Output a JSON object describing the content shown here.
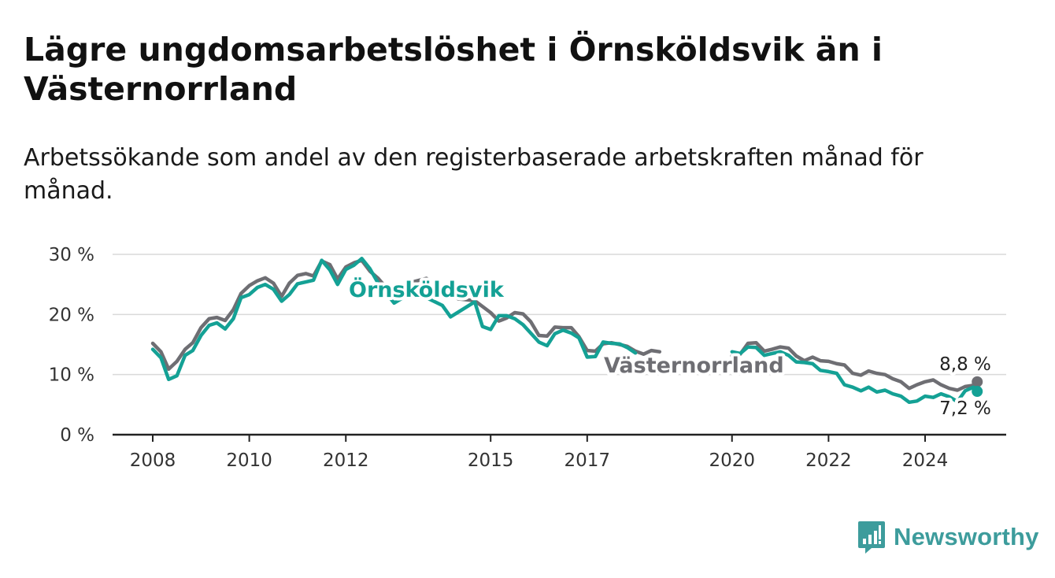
{
  "header": {
    "title": "Lägre ungdomsarbetslöshet i Örnsköldsvik än i Västernorrland",
    "subtitle": "Arbetssökande som andel av den registerbaserade arbetskraften månad för månad."
  },
  "brand": {
    "name": "Newsworthy",
    "icon": "newsworthy-logo-icon",
    "color": "#3d9c9c"
  },
  "chart_data": {
    "type": "line",
    "y_unit": "%",
    "ylim": [
      0,
      30
    ],
    "y_ticks": [
      0,
      10,
      20,
      30
    ],
    "y_tick_labels": [
      "0 %",
      "10 %",
      "20 %",
      "30 %"
    ],
    "xlim": [
      2007.6,
      2025.6
    ],
    "x_ticks": [
      2008,
      2010,
      2012,
      2015,
      2017,
      2020,
      2022,
      2024
    ],
    "x_tick_labels": [
      "2008",
      "2010",
      "2012",
      "2015",
      "2017",
      "2020",
      "2022",
      "2024"
    ],
    "grid": true,
    "legend": "inline labels on lines",
    "series": [
      {
        "name": "Västernorrland",
        "color": "#6e6e73",
        "end_label": "8,8 %",
        "points": [
          [
            2008.0,
            15.2
          ],
          [
            2008.17,
            13.8
          ],
          [
            2008.33,
            10.9
          ],
          [
            2008.5,
            12.2
          ],
          [
            2008.67,
            14.2
          ],
          [
            2008.83,
            15.3
          ],
          [
            2009.0,
            17.8
          ],
          [
            2009.17,
            19.3
          ],
          [
            2009.33,
            19.5
          ],
          [
            2009.5,
            19.0
          ],
          [
            2009.67,
            20.8
          ],
          [
            2009.83,
            23.5
          ],
          [
            2010.0,
            24.8
          ],
          [
            2010.17,
            25.6
          ],
          [
            2010.33,
            26.1
          ],
          [
            2010.5,
            25.2
          ],
          [
            2010.67,
            23.0
          ],
          [
            2010.83,
            25.2
          ],
          [
            2011.0,
            26.5
          ],
          [
            2011.17,
            26.8
          ],
          [
            2011.33,
            26.4
          ],
          [
            2011.5,
            28.9
          ],
          [
            2011.67,
            28.3
          ],
          [
            2011.83,
            25.9
          ],
          [
            2012.0,
            27.9
          ],
          [
            2012.17,
            28.6
          ],
          [
            2012.33,
            29.0
          ],
          [
            2012.5,
            27.2
          ],
          [
            2012.67,
            26.0
          ],
          [
            2013.0,
            22.9
          ],
          [
            2013.33,
            25.3
          ],
          [
            2013.67,
            26.0
          ],
          [
            2014.0,
            24.3
          ],
          [
            2014.33,
            22.6
          ],
          [
            2014.67,
            22.3
          ],
          [
            2015.0,
            20.3
          ],
          [
            2015.17,
            18.9
          ],
          [
            2015.33,
            19.4
          ],
          [
            2015.5,
            20.3
          ],
          [
            2015.67,
            20.1
          ],
          [
            2015.83,
            18.8
          ],
          [
            2016.0,
            16.5
          ],
          [
            2016.17,
            16.4
          ],
          [
            2016.33,
            17.9
          ],
          [
            2016.5,
            17.8
          ],
          [
            2016.67,
            17.8
          ],
          [
            2016.83,
            16.3
          ],
          [
            2017.0,
            14.0
          ],
          [
            2017.17,
            13.9
          ],
          [
            2017.33,
            15.1
          ],
          [
            2017.5,
            15.3
          ],
          [
            2017.67,
            15.0
          ],
          [
            2017.83,
            14.7
          ],
          [
            2018.0,
            13.9
          ],
          [
            2018.17,
            13.4
          ],
          [
            2018.33,
            14.0
          ],
          [
            2018.5,
            13.8
          ],
          [
            2020.0,
            13.1
          ],
          [
            2020.17,
            13.4
          ],
          [
            2020.33,
            15.2
          ],
          [
            2020.5,
            15.3
          ],
          [
            2020.67,
            13.9
          ],
          [
            2020.83,
            14.2
          ],
          [
            2021.0,
            14.6
          ],
          [
            2021.17,
            14.4
          ],
          [
            2021.33,
            13.1
          ],
          [
            2021.5,
            12.3
          ],
          [
            2021.67,
            12.9
          ],
          [
            2021.83,
            12.3
          ],
          [
            2022.0,
            12.2
          ],
          [
            2022.17,
            11.8
          ],
          [
            2022.33,
            11.6
          ],
          [
            2022.5,
            10.2
          ],
          [
            2022.67,
            9.9
          ],
          [
            2022.83,
            10.6
          ],
          [
            2023.0,
            10.2
          ],
          [
            2023.17,
            10.0
          ],
          [
            2023.33,
            9.3
          ],
          [
            2023.5,
            8.8
          ],
          [
            2023.67,
            7.7
          ],
          [
            2023.83,
            8.3
          ],
          [
            2024.0,
            8.8
          ],
          [
            2024.17,
            9.1
          ],
          [
            2024.33,
            8.3
          ],
          [
            2024.5,
            7.7
          ],
          [
            2024.67,
            7.4
          ],
          [
            2024.83,
            8.0
          ],
          [
            2025.0,
            8.2
          ],
          [
            2025.08,
            8.8
          ]
        ]
      },
      {
        "name": "Örnsköldsvik",
        "color": "#14a195",
        "end_label": "7,2 %",
        "points": [
          [
            2008.0,
            14.2
          ],
          [
            2008.17,
            12.8
          ],
          [
            2008.33,
            9.2
          ],
          [
            2008.5,
            9.8
          ],
          [
            2008.67,
            13.2
          ],
          [
            2008.83,
            14.0
          ],
          [
            2009.0,
            16.5
          ],
          [
            2009.17,
            18.2
          ],
          [
            2009.33,
            18.6
          ],
          [
            2009.5,
            17.6
          ],
          [
            2009.67,
            19.3
          ],
          [
            2009.83,
            22.8
          ],
          [
            2010.0,
            23.3
          ],
          [
            2010.17,
            24.5
          ],
          [
            2010.33,
            25.0
          ],
          [
            2010.5,
            24.2
          ],
          [
            2010.67,
            22.2
          ],
          [
            2010.83,
            23.3
          ],
          [
            2011.0,
            25.1
          ],
          [
            2011.17,
            25.4
          ],
          [
            2011.33,
            25.7
          ],
          [
            2011.5,
            29.0
          ],
          [
            2011.67,
            27.4
          ],
          [
            2011.83,
            25.0
          ],
          [
            2012.0,
            27.5
          ],
          [
            2012.17,
            28.2
          ],
          [
            2012.33,
            29.3
          ],
          [
            2012.5,
            27.6
          ],
          [
            2012.67,
            25.2
          ],
          [
            2013.0,
            21.9
          ],
          [
            2013.33,
            23.5
          ],
          [
            2013.67,
            22.8
          ],
          [
            2014.0,
            21.5
          ],
          [
            2014.17,
            19.6
          ],
          [
            2014.33,
            20.4
          ],
          [
            2014.67,
            22.1
          ],
          [
            2014.83,
            18.0
          ],
          [
            2015.0,
            17.5
          ],
          [
            2015.17,
            19.8
          ],
          [
            2015.33,
            19.8
          ],
          [
            2015.5,
            19.3
          ],
          [
            2015.67,
            18.3
          ],
          [
            2015.83,
            16.9
          ],
          [
            2016.0,
            15.4
          ],
          [
            2016.17,
            14.8
          ],
          [
            2016.33,
            16.8
          ],
          [
            2016.5,
            17.4
          ],
          [
            2016.67,
            16.9
          ],
          [
            2016.83,
            16.1
          ],
          [
            2017.0,
            12.9
          ],
          [
            2017.17,
            13.0
          ],
          [
            2017.33,
            15.4
          ],
          [
            2017.5,
            15.2
          ],
          [
            2017.67,
            15.1
          ],
          [
            2017.83,
            14.5
          ],
          [
            2018.0,
            13.6
          ],
          [
            2020.0,
            13.8
          ],
          [
            2020.17,
            13.5
          ],
          [
            2020.33,
            14.6
          ],
          [
            2020.5,
            14.5
          ],
          [
            2020.67,
            13.2
          ],
          [
            2020.83,
            13.5
          ],
          [
            2021.0,
            13.8
          ],
          [
            2021.17,
            13.2
          ],
          [
            2021.33,
            12.1
          ],
          [
            2021.5,
            12.0
          ],
          [
            2021.67,
            11.8
          ],
          [
            2021.83,
            10.7
          ],
          [
            2022.0,
            10.5
          ],
          [
            2022.17,
            10.2
          ],
          [
            2022.33,
            8.3
          ],
          [
            2022.5,
            7.9
          ],
          [
            2022.67,
            7.3
          ],
          [
            2022.83,
            7.9
          ],
          [
            2023.0,
            7.1
          ],
          [
            2023.17,
            7.4
          ],
          [
            2023.33,
            6.8
          ],
          [
            2023.5,
            6.4
          ],
          [
            2023.67,
            5.4
          ],
          [
            2023.83,
            5.6
          ],
          [
            2024.0,
            6.4
          ],
          [
            2024.17,
            6.2
          ],
          [
            2024.33,
            6.8
          ],
          [
            2024.5,
            6.3
          ],
          [
            2024.67,
            5.5
          ],
          [
            2024.83,
            7.3
          ],
          [
            2025.0,
            7.9
          ],
          [
            2025.08,
            7.2
          ]
        ]
      }
    ]
  }
}
